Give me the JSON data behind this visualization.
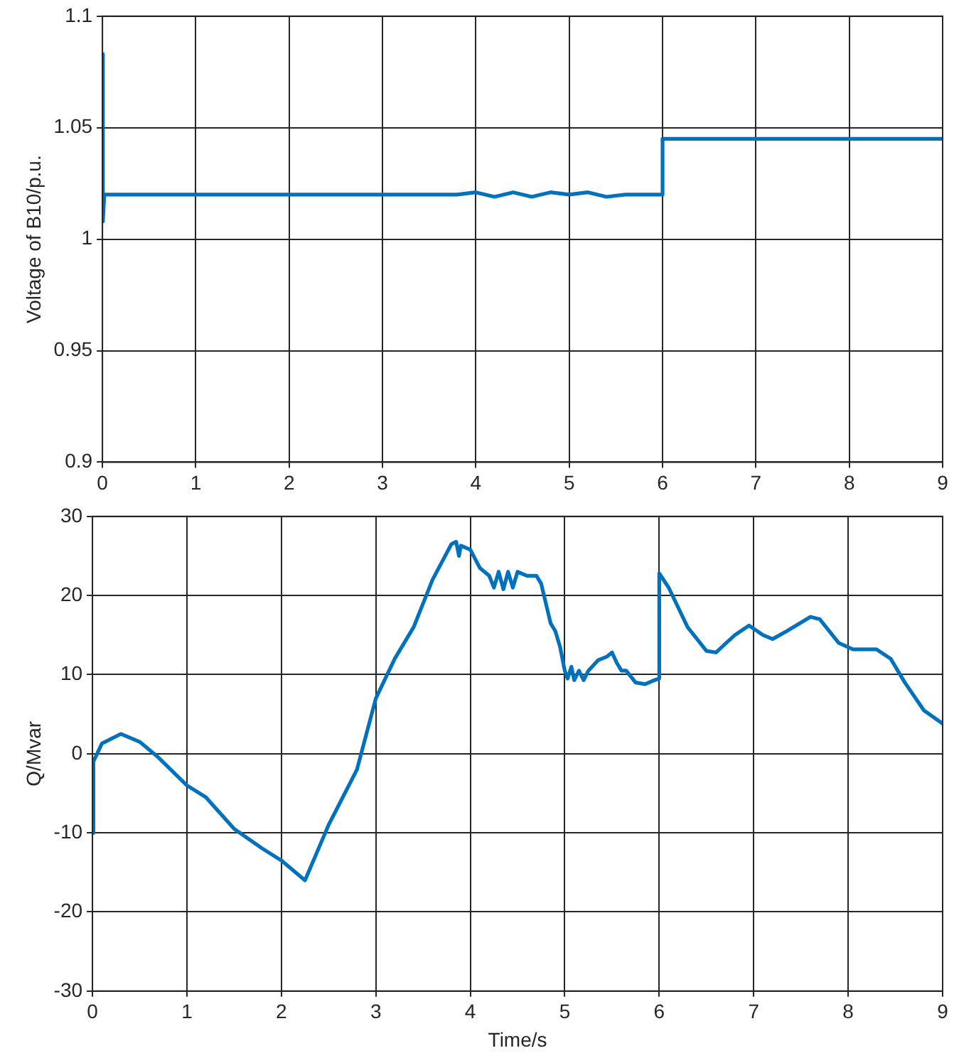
{
  "chart_data": [
    {
      "type": "line",
      "ylabel": "Voltage of B10/p.u.",
      "xlim": [
        0,
        9
      ],
      "xticks": [
        0,
        1,
        2,
        3,
        4,
        5,
        6,
        7,
        8,
        9
      ],
      "ylim": [
        0.9,
        1.1
      ],
      "yticks": [
        0.9,
        0.95,
        1,
        1.05,
        1.1
      ],
      "grid": true,
      "legend": false,
      "marker": "none",
      "line_style": "solid",
      "series": [
        {
          "color": "#0072bd",
          "x": [
            0,
            0.005,
            0.02,
            3.8,
            4.0,
            4.2,
            4.4,
            4.6,
            4.8,
            5.0,
            5.2,
            5.4,
            5.6,
            6.0,
            6.0,
            9
          ],
          "values": [
            1.083,
            1.008,
            1.02,
            1.02,
            1.021,
            1.019,
            1.021,
            1.019,
            1.021,
            1.02,
            1.021,
            1.019,
            1.02,
            1.02,
            1.045,
            1.045
          ]
        }
      ]
    },
    {
      "type": "line",
      "xlabel": "Time/s",
      "ylabel": "Q/Mvar",
      "xlim": [
        0,
        9
      ],
      "xticks": [
        0,
        1,
        2,
        3,
        4,
        5,
        6,
        7,
        8,
        9
      ],
      "ylim": [
        -30,
        30
      ],
      "yticks": [
        -30,
        -20,
        -10,
        0,
        10,
        20,
        30
      ],
      "grid": true,
      "legend": false,
      "marker": "none",
      "line_style": "solid",
      "series": [
        {
          "color": "#0072bd",
          "x": [
            0,
            0.01,
            0.1,
            0.3,
            0.5,
            0.7,
            1,
            1.2,
            1.5,
            1.8,
            2.0,
            2.25,
            2.5,
            2.8,
            3,
            3.2,
            3.4,
            3.6,
            3.8,
            3.85,
            3.88,
            3.9,
            4.0,
            4.1,
            4.2,
            4.25,
            4.3,
            4.35,
            4.4,
            4.45,
            4.5,
            4.6,
            4.7,
            4.75,
            4.8,
            4.85,
            4.9,
            4.95,
            5.0,
            5.03,
            5.07,
            5.1,
            5.15,
            5.2,
            5.25,
            5.35,
            5.45,
            5.5,
            5.55,
            5.6,
            5.65,
            5.75,
            5.85,
            5.95,
            6.0,
            6.0,
            6.1,
            6.3,
            6.5,
            6.6,
            6.8,
            6.95,
            7.1,
            7.2,
            7.35,
            7.6,
            7.7,
            7.9,
            8.05,
            8.3,
            8.45,
            8.6,
            8.8,
            9
          ],
          "values": [
            -10,
            -1,
            1.3,
            2.5,
            1.5,
            -0.5,
            -4,
            -5.5,
            -9.5,
            -12,
            -13.5,
            -16,
            -9,
            -2,
            7,
            12,
            16,
            22,
            26.5,
            26.8,
            25,
            26.3,
            25.8,
            23.5,
            22.5,
            21,
            23,
            20.8,
            23,
            21,
            23,
            22.5,
            22.5,
            21.5,
            19,
            16.5,
            15.5,
            13.5,
            10.5,
            9.5,
            11,
            9.3,
            10.5,
            9.3,
            10.5,
            11.8,
            12.3,
            12.8,
            11.5,
            10.5,
            10.5,
            9,
            8.8,
            9.3,
            9.5,
            22.8,
            21,
            16,
            13,
            12.8,
            15,
            16.2,
            15,
            14.5,
            15.5,
            17.3,
            17,
            14,
            13.2,
            13.2,
            12,
            9,
            5.5,
            3.8
          ]
        }
      ]
    }
  ]
}
